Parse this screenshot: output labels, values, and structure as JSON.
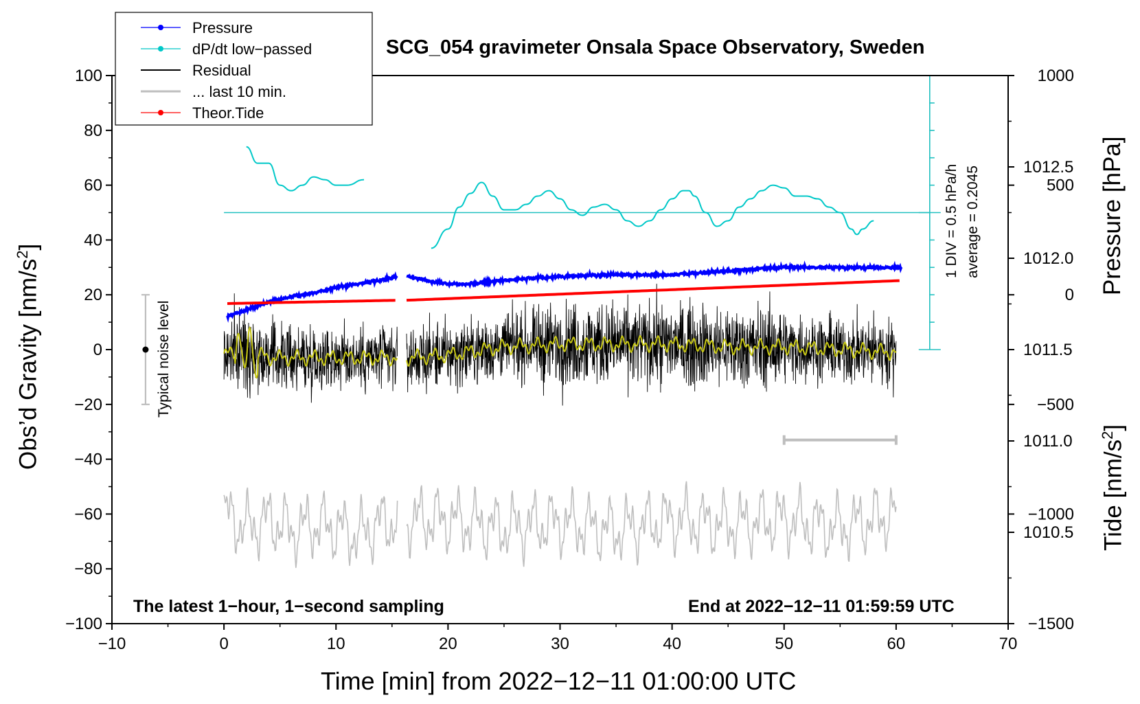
{
  "chart_data": {
    "type": "line",
    "title": "SCG_054 gravimeter Onsala Space Observatory, Sweden",
    "xlabel": "Time [min] from 2022−12−11 01:00:00 UTC",
    "ylabel_left_main": "Obs’d Gravity [nm/s",
    "ylabel_left_sup": "2",
    "ylabel_left_end": "]",
    "ylabel_right_pressure": "Pressure [hPa]",
    "ylabel_right_tide_main": "Tide [nm/s",
    "ylabel_right_tide_sup": "2",
    "ylabel_right_tide_end": "]",
    "xlim": [
      -10,
      70
    ],
    "ylim": [
      -100,
      100
    ],
    "x_ticks": [
      "−10",
      "0",
      "10",
      "20",
      "30",
      "40",
      "50",
      "60",
      "70"
    ],
    "y_ticks": [
      "−100",
      "−80",
      "−60",
      "−40",
      "−20",
      "0",
      "20",
      "40",
      "60",
      "80",
      "100"
    ],
    "pressure_axis": {
      "range": [
        1010.0,
        1013.0
      ],
      "ticks": [
        "1010.5",
        "1011.0",
        "1011.5",
        "1012.0",
        "1012.5"
      ]
    },
    "tide_axis": {
      "range": [
        -1500,
        1000
      ],
      "ticks": [
        "−1500",
        "−1000",
        "−500",
        "0",
        "500",
        "1000"
      ]
    },
    "legend": {
      "placement": "top-left",
      "entries": [
        {
          "label": "Pressure",
          "color": "#0000ff",
          "marker": true
        },
        {
          "label": "dP/dt low−passed",
          "color": "#00c8c8",
          "marker": true
        },
        {
          "label": "Residual",
          "color": "#000000",
          "marker": false
        },
        {
          "label": "... last 10 min.",
          "color": "#bebebe",
          "marker": false
        },
        {
          "label": "Theor.Tide",
          "color": "#ff0000",
          "marker": true
        }
      ]
    },
    "annotations": {
      "noise": "Typical noise level",
      "noise_center": 0,
      "noise_range": [
        -20,
        20
      ],
      "noise_x": -7,
      "dpdt_div": "1 DIV = 0.5 hPa/h",
      "dpdt_avg": "average = 0.2045",
      "dpdt_axis_x": 63,
      "dpdt_axis_range": [
        0,
        100
      ],
      "dpdt_baseline": 50,
      "bottom_left": "The latest 1−hour, 1−second sampling",
      "bottom_right": "End at 2022−12−11 01:59:59 UTC",
      "gap_minutes": [
        15.5,
        16.3
      ],
      "last10_bar": [
        50,
        60
      ],
      "last10_bar_level": -33
    },
    "series": [
      {
        "name": "Pressure",
        "color": "#0000ff",
        "axis": "pressure_hpa",
        "x": [
          0.3,
          2,
          4,
          6,
          8,
          10,
          12,
          14,
          15.5,
          16.5,
          18,
          20,
          22,
          25,
          30,
          35,
          40,
          45,
          50,
          55,
          60.5
        ],
        "values": [
          1011.68,
          1011.72,
          1011.76,
          1011.79,
          1011.81,
          1011.84,
          1011.86,
          1011.88,
          1011.9,
          1011.9,
          1011.88,
          1011.86,
          1011.86,
          1011.88,
          1011.9,
          1011.91,
          1011.91,
          1011.93,
          1011.95,
          1011.95,
          1011.95
        ]
      },
      {
        "name": "dP/dt low−passed",
        "color": "#00c8c8",
        "axis": "gravity_scale",
        "x": [
          2,
          3,
          4,
          5,
          6,
          7,
          8,
          9,
          10,
          11,
          12.5,
          18.5,
          20,
          21,
          22,
          23,
          24,
          25,
          26,
          27,
          28,
          29,
          30,
          31,
          32,
          33,
          34,
          35,
          36,
          37,
          38,
          39,
          40,
          41,
          41.5,
          42,
          43,
          44,
          45,
          46,
          47,
          48,
          49,
          50,
          51,
          52,
          53,
          54,
          55,
          56,
          56.5,
          57,
          58
        ],
        "values": [
          74,
          68,
          68,
          60,
          58,
          60,
          63,
          62,
          60,
          60,
          62,
          37,
          44,
          52,
          57,
          61,
          56,
          51,
          51,
          53,
          56,
          58,
          55,
          51,
          49,
          52,
          53,
          51,
          47,
          45,
          47,
          51,
          55,
          58,
          58,
          56,
          50,
          45,
          47,
          52,
          55,
          58,
          60,
          59,
          56,
          56,
          55,
          52,
          50,
          44,
          42,
          44,
          47
        ]
      },
      {
        "name": "Residual",
        "color": "#000000",
        "axis": "gravity",
        "x": [
          0,
          2,
          4,
          6,
          8,
          10,
          12,
          14,
          15.5,
          16.5,
          20,
          25,
          30,
          35,
          40,
          45,
          50,
          55,
          60
        ],
        "values": [
          -2,
          0,
          -3,
          -3,
          -3,
          -3,
          -3,
          -3,
          -3,
          -3,
          -2,
          1,
          2,
          2,
          2,
          1,
          1,
          0,
          -1
        ]
      },
      {
        "name": "... last 10 min.",
        "color": "#bebebe",
        "axis": "gravity",
        "x": [
          0,
          2,
          4,
          6,
          8,
          10,
          12,
          14,
          15.5,
          16.5,
          20,
          25,
          30,
          35,
          40,
          45,
          50,
          55,
          60
        ],
        "values": [
          -60,
          -65,
          -62,
          -66,
          -64,
          -65,
          -68,
          -63,
          -63,
          -62,
          -62,
          -65,
          -63,
          -66,
          -62,
          -64,
          -62,
          -65,
          -60
        ]
      },
      {
        "name": "Theor.Tide",
        "color": "#ff0000",
        "axis": "tide_nms2",
        "x": [
          0.3,
          15.5,
          16.3,
          60.5
        ],
        "values": [
          -40,
          -25,
          -25,
          65
        ]
      }
    ]
  }
}
